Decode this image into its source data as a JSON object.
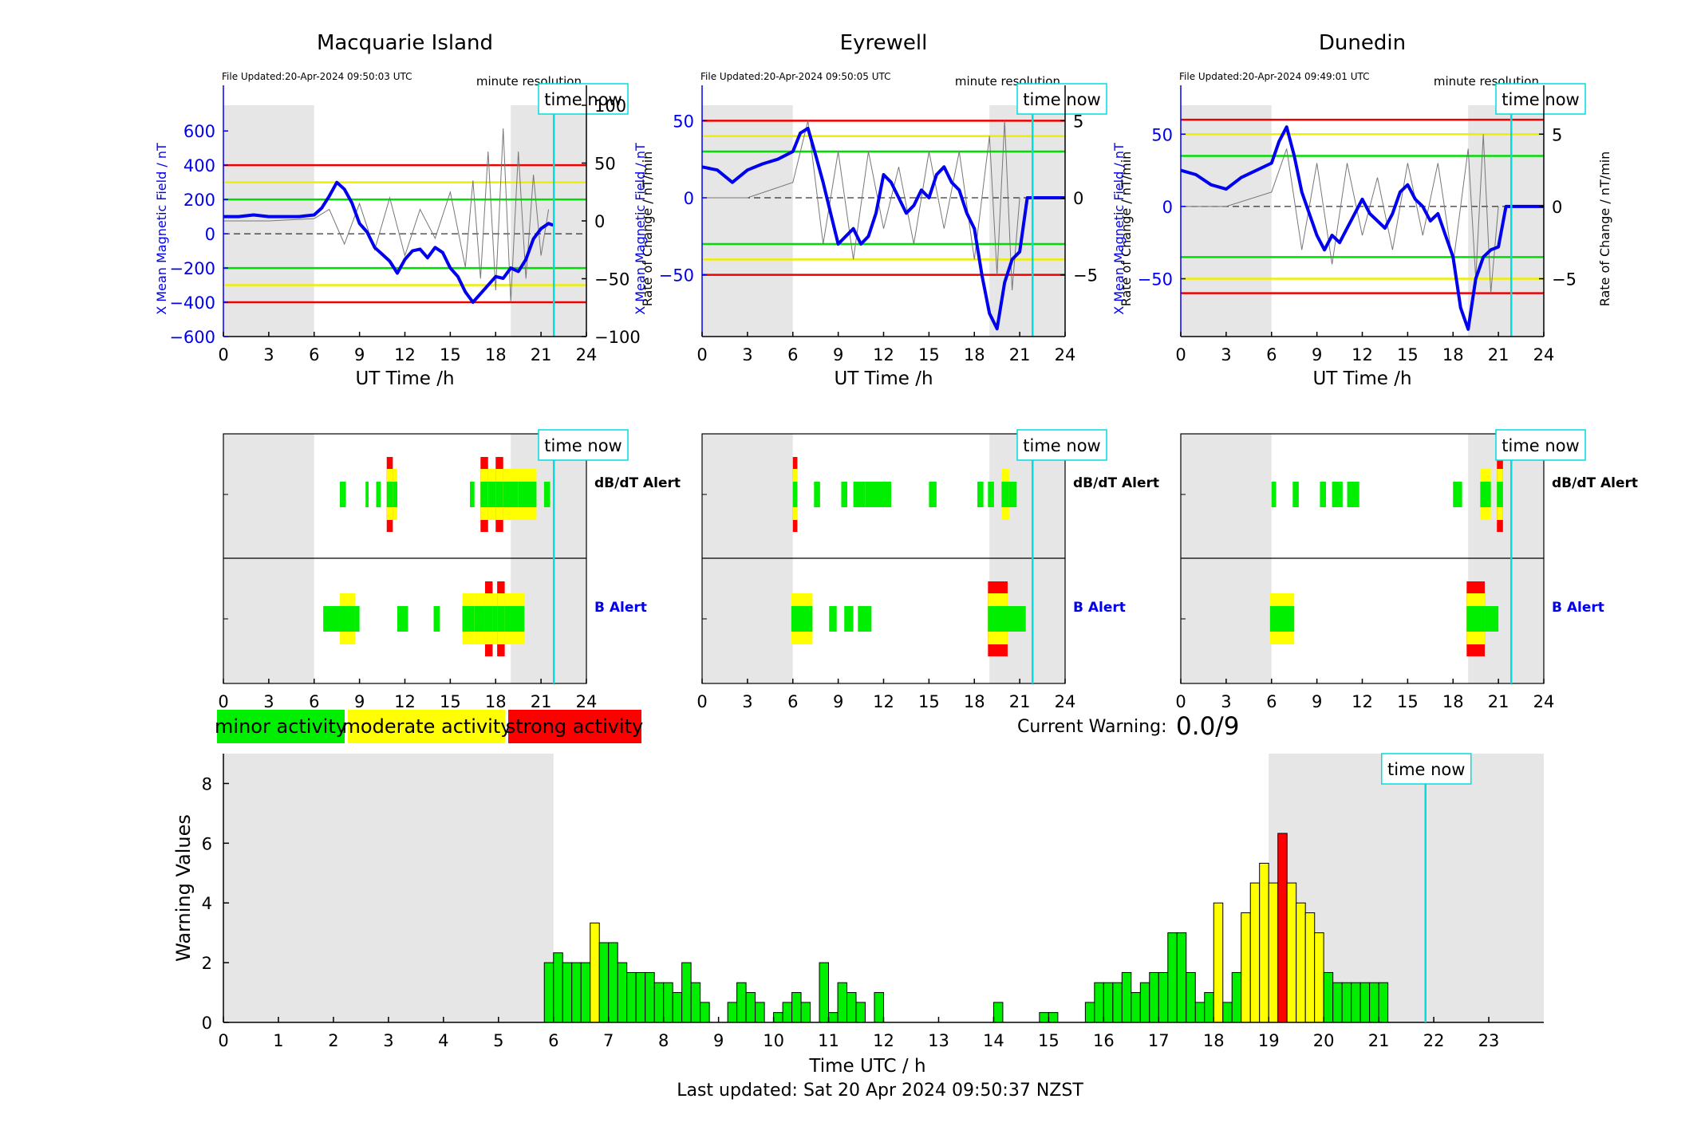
{
  "footer": {
    "last_updated": "Last updated: Sat 20 Apr 2024 09:50:37 NZST"
  },
  "common": {
    "time_now_label": "time now",
    "minute_resolution": "minute resolution",
    "x_axis_label": "UT Time /h",
    "left_axis_label": "X Mean Magnetic Field / nT",
    "right_axis_label": "Rate of Change / nT/min",
    "dbdt_alert_label": "dB/dT Alert",
    "b_alert_label": "B Alert",
    "time_now_hour": 21.85
  },
  "legend": {
    "minor": "minor activity",
    "moderate": "moderate activity",
    "strong": "strong activity",
    "colors": {
      "minor": "#00ee00",
      "moderate": "#ffff00",
      "strong": "#ff0000"
    }
  },
  "current_warning": {
    "label": "Current Warning:",
    "value": "0.0/9"
  },
  "colors": {
    "field": "#0000ee",
    "rate": "#777777",
    "time_now": "#00dddd",
    "night": "#e6e6e6"
  },
  "chart_data": [
    {
      "type": "line",
      "title": "Macquarie Island",
      "file_updated": "File Updated:20-Apr-2024 09:50:03 UTC",
      "xlabel": "UT Time /h",
      "xlim": [
        0,
        24
      ],
      "x_ticks": [
        0,
        3,
        6,
        9,
        12,
        15,
        18,
        21,
        24
      ],
      "ylim_left": [
        -600,
        750
      ],
      "left_ticks": [
        -600,
        -400,
        -200,
        0,
        200,
        400,
        600
      ],
      "ylim_right": [
        -100,
        100
      ],
      "right_ticks": [
        -100,
        -50,
        0,
        50,
        100
      ],
      "thresholds": {
        "green": 200,
        "yellow": 300,
        "red": 400
      },
      "night_shading": [
        [
          0,
          6
        ],
        [
          19,
          24
        ]
      ],
      "field_series": {
        "x": [
          0,
          1,
          2,
          3,
          4,
          5,
          6,
          6.5,
          7,
          7.5,
          8,
          8.5,
          9,
          9.5,
          10,
          10.5,
          11,
          11.5,
          12,
          12.5,
          13,
          13.5,
          14,
          14.5,
          15,
          15.5,
          16,
          16.5,
          17,
          17.5,
          18,
          18.5,
          19,
          19.5,
          20,
          20.5,
          21,
          21.5,
          21.8
        ],
        "y": [
          100,
          100,
          110,
          100,
          100,
          100,
          110,
          150,
          220,
          300,
          260,
          180,
          60,
          10,
          -80,
          -120,
          -160,
          -230,
          -150,
          -100,
          -90,
          -140,
          -80,
          -110,
          -200,
          -250,
          -340,
          -400,
          -350,
          -300,
          -250,
          -260,
          -200,
          -220,
          -150,
          -30,
          30,
          60,
          50
        ]
      },
      "rate_series": {
        "x": [
          0,
          3,
          6,
          7,
          8,
          9,
          10,
          11,
          12,
          13,
          14,
          15,
          16,
          16.5,
          17,
          17.5,
          18,
          18.5,
          19,
          19.5,
          20,
          20.5,
          21,
          21.5
        ],
        "y": [
          0,
          0,
          2,
          10,
          -20,
          15,
          -25,
          20,
          -30,
          10,
          -15,
          25,
          -40,
          35,
          -50,
          60,
          -60,
          80,
          -70,
          60,
          -50,
          40,
          -30,
          10
        ]
      },
      "dbdt_alert": [
        {
          "start": 7.7,
          "end": 8.1,
          "level": "minor"
        },
        {
          "start": 9.4,
          "end": 9.6,
          "level": "minor"
        },
        {
          "start": 10.1,
          "end": 10.4,
          "level": "minor"
        },
        {
          "start": 10.8,
          "end": 11.2,
          "level": "strong"
        },
        {
          "start": 11.2,
          "end": 11.5,
          "level": "moderate"
        },
        {
          "start": 16.3,
          "end": 16.6,
          "level": "minor"
        },
        {
          "start": 17.0,
          "end": 17.5,
          "level": "strong"
        },
        {
          "start": 17.5,
          "end": 18.0,
          "level": "moderate"
        },
        {
          "start": 18.0,
          "end": 18.5,
          "level": "strong"
        },
        {
          "start": 18.5,
          "end": 19.5,
          "level": "moderate"
        },
        {
          "start": 19.5,
          "end": 20.7,
          "level": "moderate"
        },
        {
          "start": 21.2,
          "end": 21.6,
          "level": "minor"
        }
      ],
      "b_alert": [
        {
          "start": 6.6,
          "end": 7.7,
          "level": "minor"
        },
        {
          "start": 7.7,
          "end": 8.7,
          "level": "moderate"
        },
        {
          "start": 8.7,
          "end": 9.0,
          "level": "minor"
        },
        {
          "start": 11.5,
          "end": 12.2,
          "level": "minor"
        },
        {
          "start": 13.9,
          "end": 14.3,
          "level": "minor"
        },
        {
          "start": 15.8,
          "end": 16.6,
          "level": "moderate"
        },
        {
          "start": 16.6,
          "end": 17.3,
          "level": "moderate"
        },
        {
          "start": 17.3,
          "end": 17.8,
          "level": "strong"
        },
        {
          "start": 17.8,
          "end": 18.1,
          "level": "moderate"
        },
        {
          "start": 18.1,
          "end": 18.6,
          "level": "strong"
        },
        {
          "start": 18.6,
          "end": 19.2,
          "level": "moderate"
        },
        {
          "start": 19.2,
          "end": 19.9,
          "level": "moderate"
        }
      ]
    },
    {
      "type": "line",
      "title": "Eyrewell",
      "file_updated": "File Updated:20-Apr-2024 09:50:05 UTC",
      "xlabel": "UT Time /h",
      "xlim": [
        0,
        24
      ],
      "x_ticks": [
        0,
        3,
        6,
        9,
        12,
        15,
        18,
        21,
        24
      ],
      "ylim_left": [
        -90,
        60
      ],
      "left_ticks": [
        -50,
        0,
        50
      ],
      "ylim_right": [
        -9,
        6
      ],
      "right_ticks": [
        -5,
        0,
        5
      ],
      "thresholds": {
        "green": 30,
        "yellow": 40,
        "red": 50
      },
      "night_shading": [
        [
          0,
          6
        ],
        [
          19,
          24
        ]
      ],
      "field_series": {
        "x": [
          0,
          1,
          2,
          3,
          4,
          5,
          6,
          6.5,
          7,
          7.5,
          8,
          8.5,
          9,
          9.5,
          10,
          10.5,
          11,
          11.5,
          12,
          12.5,
          13,
          13.5,
          14,
          14.5,
          15,
          15.5,
          16,
          16.5,
          17,
          17.5,
          18,
          18.5,
          19,
          19.5,
          20,
          20.5,
          21,
          21.5,
          22,
          24
        ],
        "y": [
          20,
          18,
          10,
          18,
          22,
          25,
          30,
          42,
          45,
          28,
          10,
          -10,
          -30,
          -25,
          -20,
          -30,
          -25,
          -10,
          15,
          10,
          0,
          -10,
          -5,
          5,
          0,
          15,
          20,
          10,
          5,
          -10,
          -20,
          -50,
          -75,
          -85,
          -55,
          -40,
          -35,
          0,
          0,
          0
        ]
      },
      "rate_series": {
        "x": [
          0,
          3,
          6,
          7,
          8,
          9,
          10,
          11,
          12,
          13,
          14,
          15,
          16,
          17,
          18,
          19,
          19.5,
          20,
          20.5,
          21
        ],
        "y": [
          0,
          0,
          1,
          5,
          -3,
          3,
          -4,
          3,
          -2,
          2,
          -3,
          3,
          -2,
          3,
          -4,
          4,
          -5,
          5,
          -6,
          0
        ]
      },
      "dbdt_alert": [
        {
          "start": 6.0,
          "end": 6.3,
          "level": "strong"
        },
        {
          "start": 7.4,
          "end": 7.8,
          "level": "minor"
        },
        {
          "start": 9.2,
          "end": 9.6,
          "level": "minor"
        },
        {
          "start": 10.0,
          "end": 10.8,
          "level": "minor"
        },
        {
          "start": 10.8,
          "end": 12.5,
          "level": "minor"
        },
        {
          "start": 15.0,
          "end": 15.5,
          "level": "minor"
        },
        {
          "start": 18.2,
          "end": 18.6,
          "level": "minor"
        },
        {
          "start": 18.9,
          "end": 19.3,
          "level": "minor"
        },
        {
          "start": 19.8,
          "end": 20.3,
          "level": "moderate"
        },
        {
          "start": 20.3,
          "end": 20.8,
          "level": "minor"
        }
      ],
      "b_alert": [
        {
          "start": 5.9,
          "end": 7.3,
          "level": "moderate"
        },
        {
          "start": 8.4,
          "end": 8.9,
          "level": "minor"
        },
        {
          "start": 9.4,
          "end": 10.0,
          "level": "minor"
        },
        {
          "start": 10.3,
          "end": 11.2,
          "level": "minor"
        },
        {
          "start": 18.9,
          "end": 20.2,
          "level": "strong"
        },
        {
          "start": 20.2,
          "end": 21.4,
          "level": "minor"
        }
      ]
    },
    {
      "type": "line",
      "title": "Dunedin",
      "file_updated": "File Updated:20-Apr-2024 09:49:01 UTC",
      "xlabel": "UT Time /h",
      "xlim": [
        0,
        24
      ],
      "x_ticks": [
        0,
        3,
        6,
        9,
        12,
        15,
        18,
        21,
        24
      ],
      "ylim_left": [
        -90,
        70
      ],
      "left_ticks": [
        -50,
        0,
        50
      ],
      "ylim_right": [
        -9,
        7
      ],
      "right_ticks": [
        -5,
        0,
        5
      ],
      "thresholds": {
        "green": 35,
        "yellow": 50,
        "red": 60
      },
      "night_shading": [
        [
          0,
          6
        ],
        [
          19,
          24
        ]
      ],
      "field_series": {
        "x": [
          0,
          1,
          2,
          3,
          4,
          5,
          6,
          6.5,
          7,
          7.5,
          8,
          8.5,
          9,
          9.5,
          10,
          10.5,
          11,
          11.5,
          12,
          12.5,
          13,
          13.5,
          14,
          14.5,
          15,
          15.5,
          16,
          16.5,
          17,
          17.5,
          18,
          18.5,
          19,
          19.5,
          20,
          20.5,
          21,
          21.5,
          22,
          24
        ],
        "y": [
          25,
          22,
          15,
          12,
          20,
          25,
          30,
          45,
          55,
          35,
          10,
          -5,
          -20,
          -30,
          -20,
          -25,
          -15,
          -5,
          5,
          -5,
          -10,
          -15,
          -5,
          10,
          15,
          5,
          0,
          -10,
          -5,
          -20,
          -35,
          -70,
          -85,
          -50,
          -35,
          -30,
          -28,
          0,
          0,
          0
        ]
      },
      "rate_series": {
        "x": [
          0,
          3,
          6,
          7,
          8,
          9,
          10,
          11,
          12,
          13,
          14,
          15,
          16,
          17,
          18,
          19,
          19.5,
          20,
          20.5,
          21
        ],
        "y": [
          0,
          0,
          1,
          4,
          -3,
          3,
          -4,
          3,
          -2,
          2,
          -3,
          3,
          -2,
          3,
          -4,
          4,
          -5,
          5,
          -6,
          0
        ]
      },
      "dbdt_alert": [
        {
          "start": 6.0,
          "end": 6.3,
          "level": "minor"
        },
        {
          "start": 7.4,
          "end": 7.8,
          "level": "minor"
        },
        {
          "start": 9.2,
          "end": 9.6,
          "level": "minor"
        },
        {
          "start": 10.0,
          "end": 10.7,
          "level": "minor"
        },
        {
          "start": 11.0,
          "end": 11.8,
          "level": "minor"
        },
        {
          "start": 18.0,
          "end": 18.6,
          "level": "minor"
        },
        {
          "start": 19.8,
          "end": 20.5,
          "level": "moderate"
        },
        {
          "start": 20.9,
          "end": 21.3,
          "level": "strong"
        }
      ],
      "b_alert": [
        {
          "start": 5.9,
          "end": 7.5,
          "level": "moderate"
        },
        {
          "start": 18.9,
          "end": 20.1,
          "level": "strong"
        },
        {
          "start": 20.1,
          "end": 21.0,
          "level": "minor"
        }
      ]
    },
    {
      "type": "bar",
      "title": "",
      "xlabel": "Time UTC / h",
      "ylabel": "Warning Values",
      "xlim": [
        0,
        24
      ],
      "ylim": [
        0,
        9
      ],
      "x_ticks": [
        0,
        1,
        2,
        3,
        4,
        5,
        6,
        7,
        8,
        9,
        10,
        11,
        12,
        13,
        14,
        15,
        16,
        17,
        18,
        19,
        20,
        21,
        22,
        23
      ],
      "y_ticks": [
        0,
        2,
        4,
        6,
        8
      ],
      "bar_width": 0.1667,
      "night_shading": [
        [
          0,
          6
        ],
        [
          19,
          24
        ]
      ],
      "x": [
        5.833,
        6.0,
        6.167,
        6.333,
        6.5,
        6.667,
        6.833,
        7.0,
        7.167,
        7.333,
        7.5,
        7.667,
        7.833,
        8.0,
        8.167,
        8.333,
        8.5,
        8.667,
        9.167,
        9.333,
        9.5,
        9.667,
        10.0,
        10.167,
        10.333,
        10.5,
        10.833,
        11.0,
        11.167,
        11.333,
        11.5,
        11.833,
        14.0,
        14.833,
        15.0,
        15.667,
        15.833,
        16.0,
        16.167,
        16.333,
        16.5,
        16.667,
        16.833,
        17.0,
        17.167,
        17.333,
        17.5,
        17.667,
        17.833,
        18.0,
        18.167,
        18.333,
        18.5,
        18.667,
        18.833,
        19.0,
        19.167,
        19.333,
        19.5,
        19.667,
        19.833,
        20.0,
        20.167,
        20.333,
        20.5,
        20.667,
        20.833,
        21.0
      ],
      "values": [
        2.0,
        2.33,
        2.0,
        2.0,
        2.0,
        3.33,
        2.67,
        2.67,
        2.0,
        1.67,
        1.67,
        1.67,
        1.33,
        1.33,
        1.0,
        2.0,
        1.33,
        0.67,
        0.67,
        1.33,
        1.0,
        0.67,
        0.33,
        0.67,
        1.0,
        0.67,
        2.0,
        0.33,
        1.33,
        1.0,
        0.67,
        1.0,
        0.67,
        0.33,
        0.33,
        0.67,
        1.33,
        1.33,
        1.33,
        1.67,
        1.0,
        1.33,
        1.67,
        1.67,
        3.0,
        3.0,
        1.67,
        0.67,
        1.0,
        4.0,
        0.67,
        1.67,
        3.67,
        4.67,
        5.33,
        4.67,
        6.33,
        4.67,
        4.0,
        3.67,
        3.0,
        1.67,
        1.33,
        1.33,
        1.33,
        1.33,
        1.33,
        1.33
      ],
      "levels": [
        "minor",
        "minor",
        "minor",
        "minor",
        "minor",
        "moderate",
        "minor",
        "minor",
        "minor",
        "minor",
        "minor",
        "minor",
        "minor",
        "minor",
        "minor",
        "minor",
        "minor",
        "minor",
        "minor",
        "minor",
        "minor",
        "minor",
        "minor",
        "minor",
        "minor",
        "minor",
        "minor",
        "minor",
        "minor",
        "minor",
        "minor",
        "minor",
        "minor",
        "minor",
        "minor",
        "minor",
        "minor",
        "minor",
        "minor",
        "minor",
        "minor",
        "minor",
        "minor",
        "minor",
        "minor",
        "minor",
        "minor",
        "minor",
        "minor",
        "moderate",
        "minor",
        "minor",
        "moderate",
        "moderate",
        "moderate",
        "moderate",
        "strong",
        "moderate",
        "moderate",
        "moderate",
        "moderate",
        "minor",
        "minor",
        "minor",
        "minor",
        "minor",
        "minor",
        "minor"
      ]
    }
  ]
}
